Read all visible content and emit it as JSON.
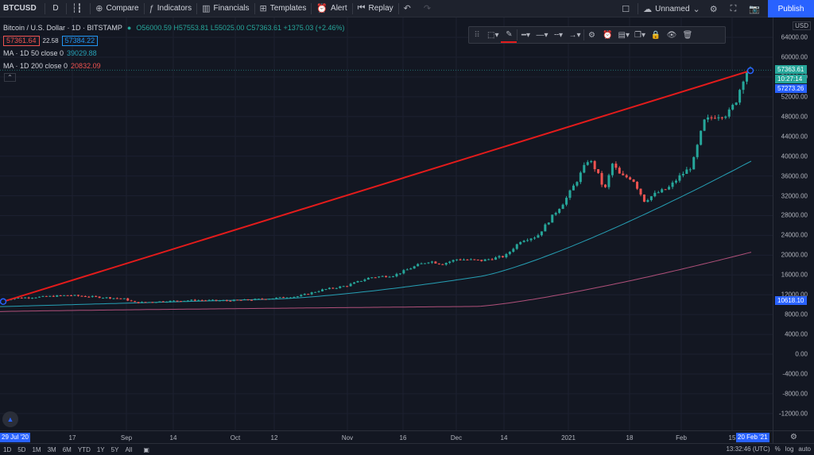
{
  "toolbar": {
    "symbol": "BTCUSD",
    "interval": "D",
    "compare": "Compare",
    "indicators": "Indicators",
    "financials": "Financials",
    "templates": "Templates",
    "alert": "Alert",
    "replay": "Replay",
    "layout_name": "Unnamed",
    "publish": "Publish"
  },
  "legend": {
    "title": "Bitcoin / U.S. Dollar · 1D · BITSTAMP",
    "ohlc": "O56000.59 H57553.81 L55025.00 C57363.61 +1375.03 (+2.46%)",
    "bid": "57361.64",
    "spread": "22.58",
    "ask": "57384.22",
    "ma50_label": "MA · 1D 50 close 0",
    "ma50_value": "39029.88",
    "ma200_label": "MA · 1D 200 close 0",
    "ma200_value": "20832.09"
  },
  "colors": {
    "background": "#131722",
    "up": "#26a69a",
    "down": "#ef5350",
    "ma50": "#26a0b5",
    "ma200": "#b0507a",
    "trendline": "#e31b1b",
    "accent": "#2962ff"
  },
  "price_axis": {
    "currency": "USD",
    "labels": [
      "64000.00",
      "60000.00",
      "56000.00",
      "52000.00",
      "48000.00",
      "44000.00",
      "40000.00",
      "36000.00",
      "32000.00",
      "28000.00",
      "24000.00",
      "20000.00",
      "16000.00",
      "12000.00",
      "8000.00",
      "4000.00",
      "0.00",
      "-4000.00",
      "-8000.00",
      "-12000.00"
    ],
    "last_price": "57363.61",
    "countdown": "10:27:14",
    "crosshair_price": "57273.26",
    "trend_start_price": "10618.10"
  },
  "time_axis": {
    "start_tag": "29 Jul '20",
    "labels": [
      "17",
      "Sep",
      "14",
      "Oct",
      "12",
      "Nov",
      "16",
      "Dec",
      "14",
      "2021",
      "18",
      "Feb",
      "15"
    ],
    "end_tag": "20 Feb '21"
  },
  "bottom_bar": {
    "ranges": [
      "1D",
      "5D",
      "1M",
      "3M",
      "6M",
      "YTD",
      "1Y",
      "5Y",
      "All"
    ],
    "clock": "13:32:46 (UTC)",
    "pct": "%",
    "log": "log",
    "auto": "auto"
  },
  "chart_data": {
    "type": "candlestick",
    "series": [
      {
        "name": "MA · 1D 50 close 0",
        "last": 39029.88
      },
      {
        "name": "MA · 1D 200 close 0",
        "last": 20832.09
      }
    ],
    "trendline": {
      "from": {
        "date": "2020-07-29",
        "price": 10618.1
      },
      "to": {
        "date": "2021-02-20",
        "price": 57273.26
      }
    },
    "ylim": [
      -14000,
      66000
    ],
    "x": [
      "2020-07-29",
      "2020-08-17",
      "2020-09-01",
      "2020-09-14",
      "2020-10-01",
      "2020-10-12",
      "2020-11-01",
      "2020-11-16",
      "2020-12-01",
      "2020-12-14",
      "2021-01-01",
      "2021-01-18",
      "2021-02-01",
      "2021-02-15",
      "2021-02-20"
    ],
    "close": [
      11100,
      11900,
      11900,
      10300,
      10600,
      11500,
      13700,
      16000,
      19000,
      19300,
      29000,
      36500,
      33500,
      48000,
      57363.61
    ]
  }
}
